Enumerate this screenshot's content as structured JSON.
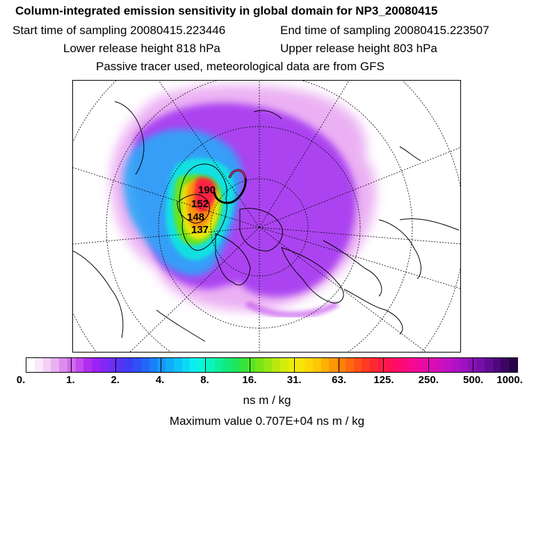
{
  "header": {
    "title": "Column-integrated emission sensitivity in global domain for NP3_20080415",
    "start_time": "Start time of sampling 20080415.223446",
    "end_time": "End time of sampling 20080415.223507",
    "lower_height": "Lower release height  818 hPa",
    "upper_height": "Upper release height  803 hPa",
    "note": "Passive tracer used, meteorological data are from GFS"
  },
  "map": {
    "projection": "north polar stereographic",
    "track_labels": [
      "190",
      "152",
      "148",
      "137"
    ]
  },
  "colorbar": {
    "tick_labels": [
      "0.",
      "1.",
      "2.",
      "4.",
      "8.",
      "16.",
      "31.",
      "63.",
      "125.",
      "250.",
      "500.",
      "1000."
    ],
    "colors": [
      "#ffffff",
      "#fbe8fb",
      "#f4cff6",
      "#eab0f2",
      "#dd8bef",
      "#d06aee",
      "#c24aee",
      "#b02df0",
      "#9a22f2",
      "#8426f4",
      "#6c2ef4",
      "#5533f4",
      "#3f3cf5",
      "#3050f6",
      "#2366f7",
      "#1b7ff8",
      "#1596f9",
      "#12adf9",
      "#0ec3f8",
      "#0ad9f6",
      "#0aeeef",
      "#0af6d8",
      "#0af4bc",
      "#0af09c",
      "#10ea7c",
      "#1ee65c",
      "#34e43e",
      "#54e426",
      "#76e618",
      "#98e812",
      "#b8ea0e",
      "#d4ec0c",
      "#eaee0a",
      "#f6e608",
      "#fcd806",
      "#fec604",
      "#feb004",
      "#fe9806",
      "#fe800a",
      "#fe6810",
      "#fe5018",
      "#fe3a24",
      "#fe2832",
      "#fe1a44",
      "#fe1058",
      "#fe0a6c",
      "#fc0880",
      "#f40894",
      "#ea0aa4",
      "#de0cb2",
      "#d00ebc",
      "#c010c2",
      "#ae12c4",
      "#9c12c0",
      "#8a12b8",
      "#760fa8",
      "#620c94",
      "#4e087c",
      "#3c0562",
      "#2a0248"
    ],
    "units": "ns m / kg"
  },
  "max_value": "Maximum value  0.707E+04 ns m / kg"
}
